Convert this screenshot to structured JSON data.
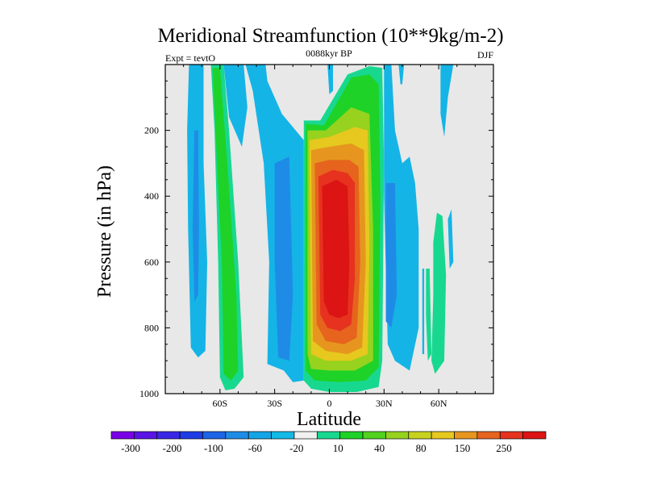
{
  "chart_data": {
    "type": "contour",
    "title": "Meridional Streamfunction (10**9kg/m-2)",
    "subtitle_left": "Expt = tevtO",
    "subtitle_center": "0088kyr BP",
    "subtitle_right": "DJF",
    "xlabel": "Latitude",
    "ylabel": "Pressure (in hPa)",
    "xlim": [
      -90,
      90
    ],
    "ylim": [
      1000,
      0
    ],
    "y_reversed": true,
    "x_ticks": [
      {
        "value": -60,
        "label": "60S"
      },
      {
        "value": -30,
        "label": "30S"
      },
      {
        "value": 0,
        "label": "0"
      },
      {
        "value": 30,
        "label": "30N"
      },
      {
        "value": 60,
        "label": "60N"
      }
    ],
    "y_ticks": [
      {
        "value": 200,
        "label": "200"
      },
      {
        "value": 400,
        "label": "400"
      },
      {
        "value": 600,
        "label": "600"
      },
      {
        "value": 800,
        "label": "800"
      },
      {
        "value": 1000,
        "label": "1000"
      }
    ],
    "background_color": "#e8e8e8",
    "colorbar": {
      "colors": [
        "#7a00e6",
        "#5a14e6",
        "#3a28e6",
        "#1e3ce6",
        "#1e64e6",
        "#1e8ce6",
        "#14a5e6",
        "#14b9e6",
        "#f0f0f0",
        "#18d890",
        "#1ed228",
        "#50d21e",
        "#96d21e",
        "#c8d21e",
        "#e6c81e",
        "#e6961e",
        "#e6641e",
        "#e6321e",
        "#dc1414"
      ],
      "labels": [
        "-300",
        "-200",
        "-100",
        "-60",
        "-20",
        "10",
        "40",
        "80",
        "150",
        "250"
      ]
    },
    "features": [
      {
        "name": "southern-negative-band-1",
        "lat_range": [
          -78,
          -66
        ],
        "p_range": [
          0,
          870
        ],
        "sign": "negative",
        "level": -20
      },
      {
        "name": "southern-positive-band",
        "lat_range": [
          -65,
          -47
        ],
        "p_range": [
          0,
          990
        ],
        "sign": "positive",
        "level": 10
      },
      {
        "name": "southern-negative-band-2",
        "lat_range": [
          -46,
          -20
        ],
        "p_range": [
          50,
          960
        ],
        "sign": "negative",
        "level": -20
      },
      {
        "name": "hadley-cell",
        "lat_range": [
          -14,
          30
        ],
        "p_range": [
          0,
          990
        ],
        "sign": "positive",
        "peak_level": 250,
        "peak_lat": 8,
        "peak_p": 550
      },
      {
        "name": "northern-negative-band",
        "lat_range": [
          30,
          50
        ],
        "p_range": [
          0,
          930
        ],
        "sign": "negative",
        "level": -20
      },
      {
        "name": "northern-positive-band",
        "lat_range": [
          55,
          75
        ],
        "p_range": [
          500,
          950
        ],
        "sign": "positive",
        "level": 10
      }
    ]
  }
}
